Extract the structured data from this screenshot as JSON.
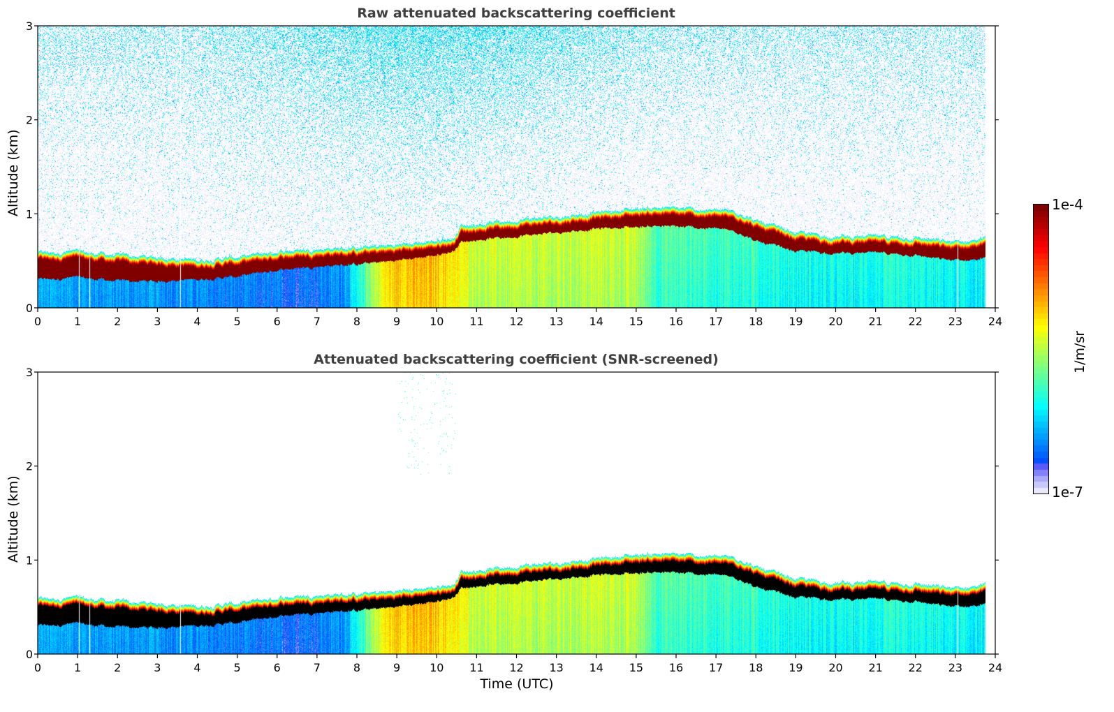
{
  "chart_data": [
    {
      "type": "heatmap",
      "title": "Raw attenuated backscattering coefficient",
      "xlabel": "",
      "ylabel": "Altitude (km)",
      "xlim": [
        0,
        24
      ],
      "ylim": [
        0,
        3
      ],
      "xticks": [
        "0",
        "1",
        "2",
        "3",
        "4",
        "5",
        "6",
        "7",
        "8",
        "9",
        "10",
        "11",
        "12",
        "13",
        "14",
        "15",
        "16",
        "17",
        "18",
        "19",
        "20",
        "21",
        "22",
        "23",
        "24"
      ],
      "yticks": [
        "0",
        "1",
        "2",
        "3"
      ],
      "screened": false,
      "data_end_time": 23.75,
      "gap_times": [
        1.03,
        1.3,
        3.57,
        23.05
      ],
      "layer_top_km": {
        "t": [
          0,
          1,
          2,
          3,
          4,
          5,
          6,
          7,
          8,
          9,
          10,
          10.4,
          10.6,
          11,
          12,
          13,
          14,
          15,
          15.5,
          16,
          17,
          17.6,
          18,
          19,
          20,
          21,
          22,
          22.5,
          23,
          23.75
        ],
        "v": [
          0.55,
          0.56,
          0.52,
          0.5,
          0.47,
          0.5,
          0.56,
          0.59,
          0.6,
          0.63,
          0.68,
          0.7,
          0.84,
          0.85,
          0.9,
          0.93,
          0.98,
          1.02,
          1.03,
          1.02,
          1.0,
          0.98,
          0.88,
          0.76,
          0.72,
          0.72,
          0.71,
          0.68,
          0.66,
          0.7
        ]
      },
      "layer_base_km": {
        "t": [
          0,
          1,
          2,
          3,
          4,
          5,
          6,
          7,
          8,
          9,
          10,
          10.4,
          10.6,
          11,
          12,
          13,
          14,
          15,
          15.5,
          16,
          17,
          17.6,
          18,
          19,
          20,
          21,
          22,
          22.5,
          23,
          23.75
        ],
        "v": [
          0.3,
          0.32,
          0.28,
          0.28,
          0.3,
          0.33,
          0.4,
          0.44,
          0.46,
          0.5,
          0.56,
          0.6,
          0.7,
          0.72,
          0.76,
          0.8,
          0.84,
          0.86,
          0.87,
          0.86,
          0.84,
          0.8,
          0.7,
          0.6,
          0.58,
          0.58,
          0.56,
          0.52,
          0.5,
          0.52
        ]
      },
      "below_layer_log10": {
        "t": [
          0,
          1,
          2,
          3,
          4,
          5,
          6,
          7,
          7.6,
          8,
          8.3,
          8.7,
          9,
          10,
          11,
          12,
          13,
          14,
          15,
          15.5,
          16,
          17,
          18,
          19,
          20,
          21,
          22,
          23,
          23.75
        ],
        "v": [
          -6.35,
          -6.35,
          -6.4,
          -6.4,
          -6.45,
          -6.5,
          -6.55,
          -6.5,
          -6.4,
          -6.1,
          -5.6,
          -5.2,
          -5.05,
          -5.05,
          -5.4,
          -5.45,
          -5.45,
          -5.4,
          -5.45,
          -5.8,
          -5.8,
          -5.85,
          -5.9,
          -6.0,
          -6.05,
          -6.0,
          -6.0,
          -6.05,
          -6.1
        ]
      },
      "colorbar": {
        "min": "1e-7",
        "max": "1e-4",
        "scale": "log",
        "unit": "1/m/sr",
        "colormap": "jet"
      }
    },
    {
      "type": "heatmap",
      "title": "Attenuated backscattering coefficient (SNR-screened)",
      "xlabel": "Time (UTC)",
      "ylabel": "Altitude (km)",
      "xlim": [
        0,
        24
      ],
      "ylim": [
        0,
        3
      ],
      "xticks": [
        "0",
        "1",
        "2",
        "3",
        "4",
        "5",
        "6",
        "7",
        "8",
        "9",
        "10",
        "11",
        "12",
        "13",
        "14",
        "15",
        "16",
        "17",
        "18",
        "19",
        "20",
        "21",
        "22",
        "23",
        "24"
      ],
      "yticks": [
        "0",
        "1",
        "2",
        "3"
      ],
      "screened": true,
      "saturated_color": "#000000",
      "data_end_time": 23.75,
      "gap_times": [
        1.03,
        1.3,
        3.57,
        23.05
      ]
    }
  ],
  "colorbar": {
    "max_label": "1e-4",
    "min_label": "1e-7",
    "unit_label": "1/m/sr"
  },
  "colors": {
    "title": "#404040",
    "axis": "#000000",
    "background": "#ffffff"
  }
}
